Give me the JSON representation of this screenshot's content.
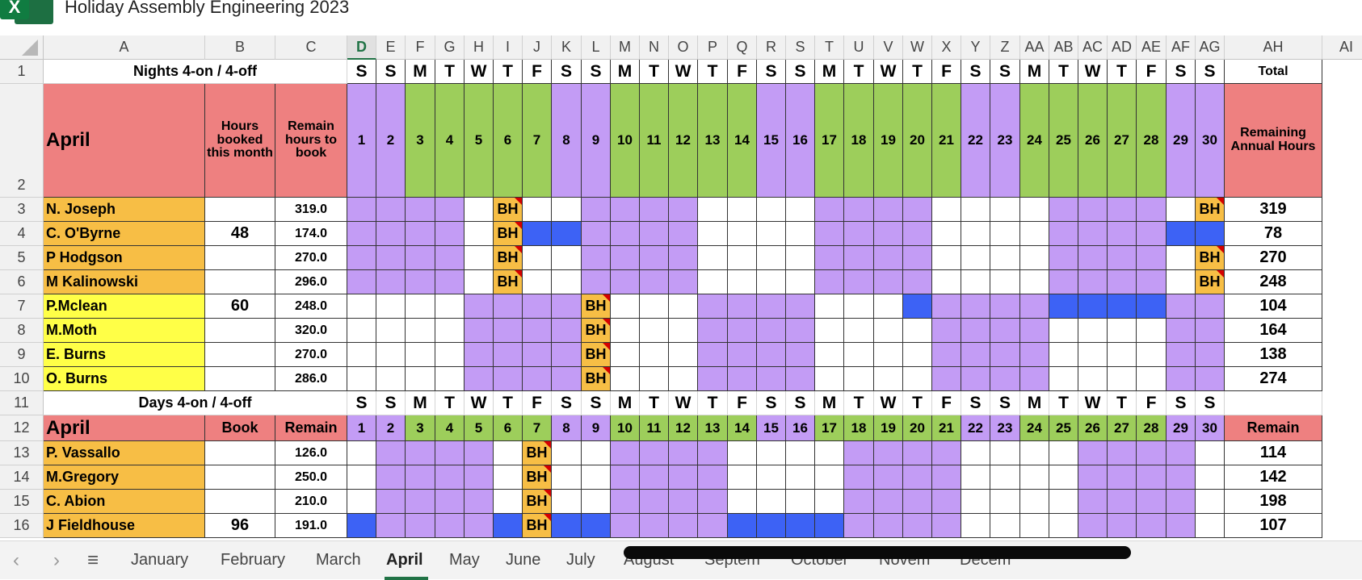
{
  "app": {
    "title": "Holiday Assembly Engineering 2023",
    "icon": "excel-icon",
    "icon_letter": "X"
  },
  "columns": [
    "A",
    "B",
    "C",
    "D",
    "E",
    "F",
    "G",
    "H",
    "I",
    "J",
    "K",
    "L",
    "M",
    "N",
    "O",
    "P",
    "Q",
    "R",
    "S",
    "T",
    "U",
    "V",
    "W",
    "X",
    "Y",
    "Z",
    "AA",
    "AB",
    "AC",
    "AD",
    "AE",
    "AF",
    "AG",
    "AH",
    "AI"
  ],
  "selected_column": "D",
  "colors": {
    "purple": "#c39cf5",
    "green": "#9dce5b",
    "orange": "#f7be45",
    "yellow": "#ffff47",
    "salmon": "#ee8080",
    "blue": "#3d62f5",
    "white": "#ffffff",
    "accent": "#217346",
    "comment_marker": "#d60000"
  },
  "nights": {
    "title": "Nights 4-on / 4-off",
    "month": "April",
    "header_b": "Hours booked this month",
    "header_c": "Remain hours to book",
    "total_label": "Total",
    "remaining_label": "Remaining Annual Hours",
    "weekdays": [
      "S",
      "S",
      "M",
      "T",
      "W",
      "T",
      "F",
      "S",
      "S",
      "M",
      "T",
      "W",
      "T",
      "F",
      "S",
      "S",
      "M",
      "T",
      "W",
      "T",
      "F",
      "S",
      "S",
      "M",
      "T",
      "W",
      "T",
      "F",
      "S",
      "S"
    ],
    "days": [
      "1",
      "2",
      "3",
      "4",
      "5",
      "6",
      "7",
      "8",
      "9",
      "10",
      "11",
      "12",
      "13",
      "14",
      "15",
      "16",
      "17",
      "18",
      "19",
      "20",
      "21",
      "22",
      "23",
      "24",
      "25",
      "26",
      "27",
      "28",
      "29",
      "30"
    ],
    "day_colors": "PPGGGGGPPGGGGGPPGGGGGPPGGGGGPP",
    "rows": [
      {
        "name": "N. Joseph",
        "booked": "",
        "remain": "319.0",
        "total": "319",
        "name_color": "orange",
        "pattern": "PPPPWOWWPPPPWWWWPPPPWWWWPPPPWO"
      },
      {
        "name": "C. O'Byrne",
        "booked": "48",
        "remain": "174.0",
        "total": "78",
        "name_color": "orange",
        "pattern": "PPPPWOBBPPPPWWWWPPPPWWWWPPPPBB"
      },
      {
        "name": "P Hodgson",
        "booked": "",
        "remain": "270.0",
        "total": "270",
        "name_color": "orange",
        "pattern": "PPPPWOWWPPPPWWWWPPPPWWWWPPPPWO"
      },
      {
        "name": "M Kalinowski",
        "booked": "",
        "remain": "296.0",
        "total": "248",
        "name_color": "orange",
        "pattern": "PPPPWOWWPPPPWWWWPPPPWWWWPPPPWO"
      },
      {
        "name": "P.Mclean",
        "booked": "60",
        "remain": "248.0",
        "total": "104",
        "name_color": "yellow",
        "pattern": "WWWWPPPPOWWWPPPPWWWBPPPPBBBBPP"
      },
      {
        "name": "M.Moth",
        "booked": "",
        "remain": "320.0",
        "total": "164",
        "name_color": "yellow",
        "pattern": "WWWWPPPPOWWWPPPPWWWWPPPPWWWWPP"
      },
      {
        "name": "E. Burns",
        "booked": "",
        "remain": "270.0",
        "total": "138",
        "name_color": "yellow",
        "pattern": "WWWWPPPPOWWWPPPPWWWWPPPPWWWWPP"
      },
      {
        "name": "O. Burns",
        "booked": "",
        "remain": "286.0",
        "total": "274",
        "name_color": "yellow",
        "pattern": "WWWWPPPPOWWWPPPPWWWWPPPPWWWWPP"
      }
    ]
  },
  "days_section": {
    "title": "Days 4-on / 4-off",
    "month": "April",
    "header_b": "Book",
    "header_c": "Remain",
    "remain_label": "Remain",
    "rows": [
      {
        "name": "P. Vassallo",
        "booked": "",
        "remain": "126.0",
        "total": "114",
        "name_color": "orange",
        "pattern": "WPPPPWOWWPPPPWWWWPPPPWWWWPPPPW"
      },
      {
        "name": "M.Gregory",
        "booked": "",
        "remain": "250.0",
        "total": "142",
        "name_color": "orange",
        "pattern": "WPPPPWOWWPPPPWWWWPPPPWWWWPPPPW"
      },
      {
        "name": "C. Abion",
        "booked": "",
        "remain": "210.0",
        "total": "198",
        "name_color": "orange",
        "pattern": "WPPPPWOWWPPPPWWWWPPPPWWWWPPPPW"
      },
      {
        "name": "J Fieldhouse",
        "booked": "96",
        "remain": "191.0",
        "total": "107",
        "name_color": "orange",
        "pattern": "BPPPPBOBBPPPPBBBBPPPPWWWWPPPPW"
      }
    ]
  },
  "bh_label": "BH",
  "row_numbers": [
    "1",
    "2",
    "3",
    "4",
    "5",
    "6",
    "7",
    "8",
    "9",
    "10",
    "11",
    "12",
    "13",
    "14",
    "15",
    "16"
  ],
  "tabs": [
    "January",
    "February",
    "March",
    "April",
    "May",
    "June",
    "July",
    "August",
    "Septem",
    "October",
    "Novem",
    "Decem"
  ],
  "active_tab": "April",
  "nav": {
    "prev": "‹",
    "next": "›",
    "menu": "≡"
  }
}
